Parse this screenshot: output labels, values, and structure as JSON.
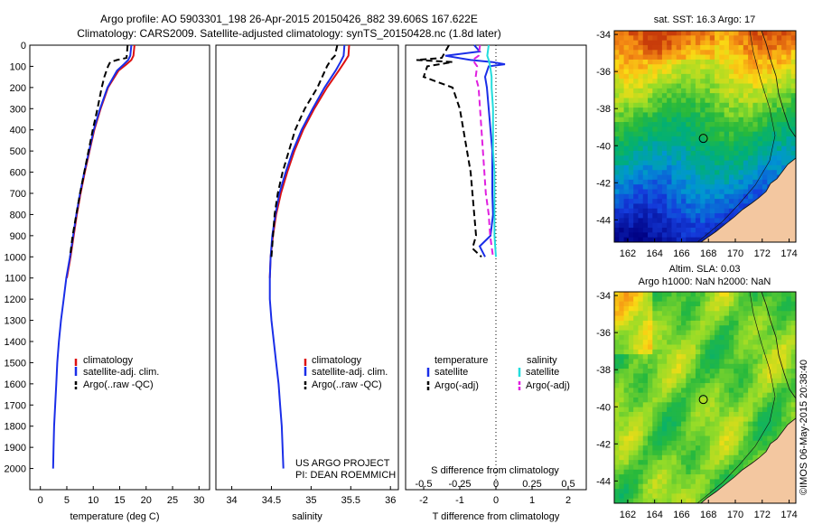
{
  "header": {
    "line1": "Argo profile: AO 5903301_198 26-Apr-2015 20150426_882 39.606S 167.622E",
    "line2": "Climatology: CARS2009. Satellite-adjusted climatology: synTS_20150428.nc (1.8d later)"
  },
  "colors": {
    "climatology": "#dd1111",
    "satellite": "#1a2ee8",
    "argo": "#000000",
    "salinity_satellite": "#22dddd",
    "salinity_argo": "#e020e0",
    "land": "#f3c7a0"
  },
  "chart_data": [
    {
      "type": "line",
      "xlabel": "temperature (deg C)",
      "ylabel": "",
      "xlim": [
        -2,
        32
      ],
      "ylim": [
        2100,
        0
      ],
      "xticks": [
        "0",
        "5",
        "10",
        "15",
        "20",
        "25",
        "30"
      ],
      "yticks": [
        "0",
        "100",
        "200",
        "300",
        "400",
        "500",
        "600",
        "700",
        "800",
        "900",
        "1000",
        "1100",
        "1200",
        "1300",
        "1400",
        "1500",
        "1600",
        "1700",
        "1800",
        "1900",
        "2000"
      ],
      "legend": [
        "climatology",
        "satellite-adj. clim.",
        "Argo(..raw -QC)"
      ],
      "legend_position": "lower-center",
      "series": [
        {
          "name": "climatology",
          "style": "solid",
          "depth": [
            0,
            50,
            70,
            90,
            120,
            200,
            300,
            400,
            500,
            600,
            700,
            800,
            900,
            1000,
            1100
          ],
          "values": [
            17.8,
            17.6,
            17.2,
            16.3,
            14.8,
            12.8,
            11.4,
            10.2,
            9.3,
            8.4,
            7.6,
            6.9,
            6.3,
            5.7,
            5.0
          ]
        },
        {
          "name": "satellite-adj. clim.",
          "style": "solid",
          "depth": [
            0,
            50,
            70,
            90,
            120,
            200,
            300,
            400,
            500,
            600,
            700,
            800,
            900,
            1000,
            1100,
            1200,
            1300,
            1400,
            1500,
            1600,
            1700,
            1800,
            1900,
            2000
          ],
          "values": [
            17.2,
            17.0,
            16.6,
            15.8,
            14.5,
            12.7,
            11.3,
            10.1,
            9.2,
            8.3,
            7.5,
            6.8,
            6.2,
            5.6,
            4.9,
            4.4,
            3.9,
            3.5,
            3.2,
            3.0,
            2.8,
            2.6,
            2.5,
            2.4
          ]
        },
        {
          "name": "Argo(..raw -QC)",
          "style": "dashed",
          "depth": [
            0,
            60,
            70,
            80,
            100,
            150,
            200,
            300,
            400,
            500,
            600,
            700,
            800,
            900,
            1000
          ],
          "values": [
            16.5,
            16.3,
            14.5,
            13.2,
            12.8,
            12.1,
            11.6,
            10.8,
            9.9,
            9.1,
            8.3,
            7.5,
            6.8,
            6.1,
            5.6
          ]
        }
      ]
    },
    {
      "type": "line",
      "xlabel": "salinity",
      "ylabel": "",
      "xlim": [
        33.8,
        36.1
      ],
      "ylim": [
        2100,
        0
      ],
      "xticks": [
        "34",
        "34.5",
        "35",
        "35.5",
        "36"
      ],
      "legend": [
        "climatology",
        "satellite-adj. clim.",
        "Argo(..raw -QC)"
      ],
      "legend_position": "lower-center",
      "annotation": [
        "US ARGO PROJECT",
        "PI: DEAN ROEMMICH"
      ],
      "series": [
        {
          "name": "climatology",
          "style": "solid",
          "depth": [
            0,
            50,
            80,
            120,
            200,
            300,
            400,
            500,
            600,
            700,
            800,
            900,
            1000,
            1100
          ],
          "values": [
            35.48,
            35.47,
            35.42,
            35.35,
            35.2,
            35.04,
            34.9,
            34.79,
            34.7,
            34.62,
            34.56,
            34.52,
            34.49,
            34.48
          ]
        },
        {
          "name": "satellite-adj. clim.",
          "style": "solid",
          "depth": [
            0,
            50,
            80,
            120,
            200,
            300,
            400,
            500,
            600,
            700,
            800,
            900,
            1000,
            1100,
            1200,
            1300,
            1400,
            1500,
            1600,
            1700,
            1800,
            1900,
            2000
          ],
          "values": [
            35.42,
            35.41,
            35.37,
            35.31,
            35.17,
            35.02,
            34.88,
            34.77,
            34.68,
            34.6,
            34.55,
            34.51,
            34.49,
            34.48,
            34.48,
            34.5,
            34.53,
            34.56,
            34.59,
            34.61,
            34.63,
            34.64,
            34.65
          ]
        },
        {
          "name": "Argo(..raw -QC)",
          "style": "dashed",
          "depth": [
            0,
            50,
            70,
            100,
            150,
            200,
            300,
            400,
            500,
            600,
            700,
            800,
            900,
            1000
          ],
          "values": [
            35.33,
            35.3,
            35.25,
            35.2,
            35.14,
            35.08,
            34.92,
            34.8,
            34.72,
            34.64,
            34.58,
            34.54,
            34.52,
            34.5
          ]
        }
      ]
    },
    {
      "type": "line",
      "xlabel": "T difference from climatology",
      "x2label": "S difference from climatology",
      "xlim": [
        -2.5,
        2.5
      ],
      "ylim": [
        2100,
        0
      ],
      "xticks": [
        "-2",
        "-1",
        "0",
        "1",
        "2"
      ],
      "x2ticks": [
        "-0.5",
        "-0.25",
        "0",
        "0.25",
        "0.5"
      ],
      "legend_titles": [
        "temperature",
        "salinity"
      ],
      "legend": [
        "satellite",
        "Argo(-adj)",
        "satellite",
        "Argo(-adj)"
      ],
      "legend_position": "lower-center",
      "series": [
        {
          "name": "satellite",
          "variable": "temperature",
          "style": "solid",
          "depth": [
            0,
            30,
            50,
            70,
            80,
            90,
            100,
            150,
            200,
            300,
            400,
            500,
            600,
            700,
            800,
            900,
            950,
            1000
          ],
          "values": [
            -0.6,
            -0.45,
            -1.4,
            -0.7,
            -0.1,
            0.25,
            -0.2,
            -0.3,
            -0.25,
            -0.2,
            -0.15,
            -0.1,
            -0.1,
            -0.1,
            -0.08,
            -0.15,
            -0.45,
            -0.3
          ]
        },
        {
          "name": "Argo(-adj)",
          "variable": "temperature",
          "style": "dashed",
          "depth": [
            0,
            60,
            70,
            80,
            100,
            150,
            200,
            300,
            400,
            500,
            600,
            700,
            800,
            900,
            960,
            1000
          ],
          "values": [
            -1.3,
            -1.5,
            -2.2,
            -1.2,
            -1.9,
            -2.0,
            -1.2,
            -1.0,
            -0.9,
            -0.8,
            -0.7,
            -0.65,
            -0.6,
            -0.55,
            -0.65,
            -0.4
          ]
        },
        {
          "name": "satellite",
          "variable": "salinity",
          "style": "solid",
          "depth": [
            0,
            50,
            70,
            100,
            150,
            200,
            300,
            400,
            500,
            600,
            700,
            800,
            900,
            1000
          ],
          "values": [
            -0.05,
            -0.06,
            -0.05,
            -0.04,
            -0.03,
            -0.03,
            -0.02,
            -0.02,
            -0.02,
            -0.01,
            -0.01,
            -0.01,
            -0.01,
            0.0
          ]
        },
        {
          "name": "Argo(-adj)",
          "variable": "salinity",
          "style": "dashed",
          "depth": [
            0,
            50,
            70,
            100,
            150,
            200,
            300,
            400,
            500,
            600,
            700,
            800,
            900,
            1000
          ],
          "values": [
            -0.11,
            -0.12,
            -0.16,
            -0.13,
            -0.14,
            -0.12,
            -0.11,
            -0.1,
            -0.09,
            -0.08,
            -0.07,
            -0.05,
            -0.04,
            -0.02
          ]
        }
      ]
    },
    {
      "type": "heatmap",
      "title": "sat. SST: 16.3  Argo: 17",
      "xlim": [
        161,
        174.5
      ],
      "ylim": [
        -45.2,
        -33.8
      ],
      "xticks": [
        "162",
        "164",
        "166",
        "168",
        "170",
        "172",
        "174"
      ],
      "yticks": [
        "-34",
        "-36",
        "-38",
        "-40",
        "-42",
        "-44"
      ],
      "marker": {
        "lon": 167.622,
        "lat": -39.606
      }
    },
    {
      "type": "heatmap",
      "title": [
        "Altim. SLA: 0.03",
        "Argo h1000: NaN h2000: NaN"
      ],
      "xlim": [
        161,
        174.5
      ],
      "ylim": [
        -45.2,
        -33.8
      ],
      "xticks": [
        "162",
        "164",
        "166",
        "168",
        "170",
        "172",
        "174"
      ],
      "yticks": [
        "-34",
        "-36",
        "-38",
        "-40",
        "-42",
        "-44"
      ],
      "marker": {
        "lon": 167.622,
        "lat": -39.606
      }
    }
  ],
  "footer": {
    "stamp": "©IMOS 06-May-2015 20:38:40"
  }
}
